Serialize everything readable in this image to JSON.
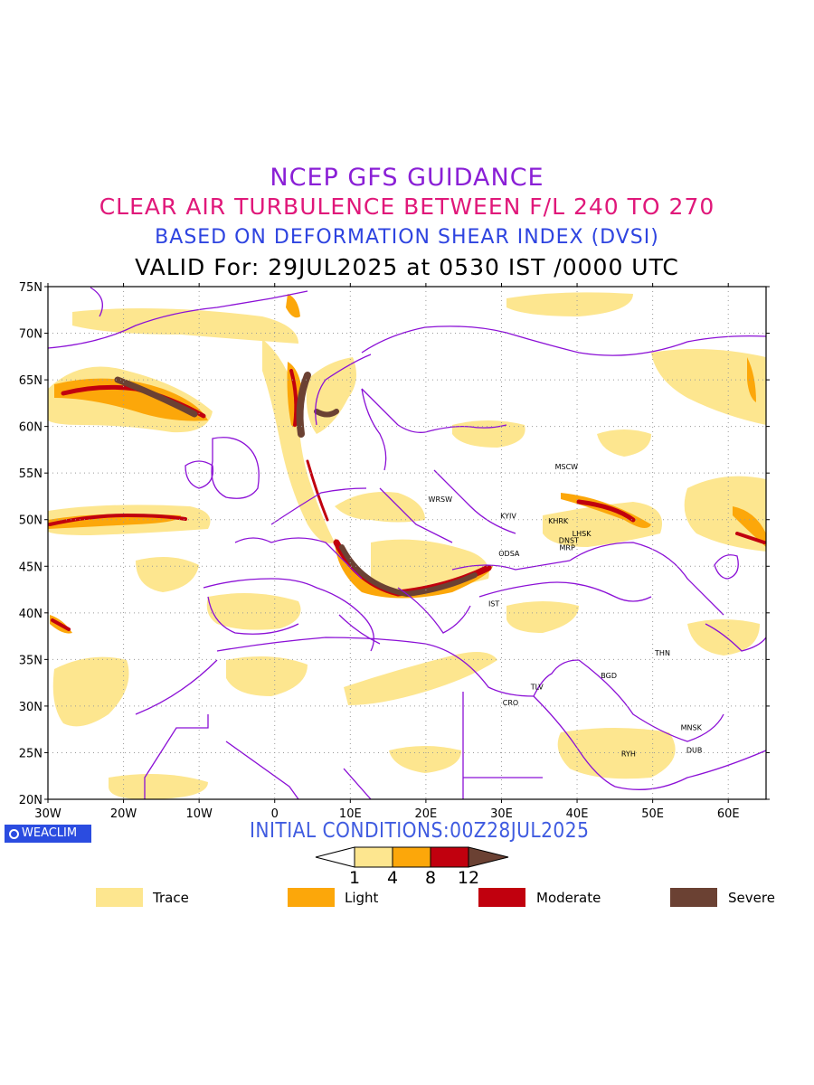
{
  "titles": {
    "line1": "NCEP GFS GUIDANCE",
    "line2": "CLEAR AIR TURBULENCE BETWEEN F/L 240 TO 270",
    "line3": "BASED ON DEFORMATION SHEAR INDEX (DVSI)",
    "line4": "VALID For: 29JUL2025 at 0530 IST /0000 UTC"
  },
  "axes": {
    "lat_labels": [
      "75N",
      "70N",
      "65N",
      "60N",
      "55N",
      "50N",
      "45N",
      "40N",
      "35N",
      "30N",
      "25N",
      "20N"
    ],
    "lon_labels": [
      "30W",
      "20W",
      "10W",
      "0",
      "10E",
      "20E",
      "30E",
      "40E",
      "50E",
      "60E"
    ]
  },
  "cities": [
    {
      "code": "MSCW",
      "lon": 38.6,
      "lat": 55.7
    },
    {
      "code": "WRSW",
      "lon": 21.9,
      "lat": 52.2
    },
    {
      "code": "KYIV",
      "lon": 30.9,
      "lat": 50.4
    },
    {
      "code": "KHRK",
      "lon": 37.5,
      "lat": 49.9
    },
    {
      "code": "LHSK",
      "lon": 40.6,
      "lat": 48.5
    },
    {
      "code": "DNST",
      "lon": 38.9,
      "lat": 47.8
    },
    {
      "code": "MRP",
      "lon": 38.7,
      "lat": 47.0
    },
    {
      "code": "ODSA",
      "lon": 31.0,
      "lat": 46.4
    },
    {
      "code": "IST",
      "lon": 29.0,
      "lat": 41.0
    },
    {
      "code": "THN",
      "lon": 51.3,
      "lat": 35.7
    },
    {
      "code": "BGD",
      "lon": 44.2,
      "lat": 33.3
    },
    {
      "code": "TLV",
      "lon": 34.7,
      "lat": 32.1
    },
    {
      "code": "CRO",
      "lon": 31.2,
      "lat": 30.4
    },
    {
      "code": "MNSK",
      "lon": 55.1,
      "lat": 27.7
    },
    {
      "code": "DUB",
      "lon": 55.5,
      "lat": 25.3
    },
    {
      "code": "RYH",
      "lon": 46.8,
      "lat": 24.9
    }
  ],
  "colorbar": {
    "thresholds": [
      "1",
      "4",
      "8",
      "12"
    ],
    "colors": [
      "#fde68f",
      "#fca70a",
      "#c1000e",
      "#6b4133"
    ]
  },
  "legend": [
    {
      "label": "Trace",
      "color": "#fde68f"
    },
    {
      "label": "Light",
      "color": "#fca70a"
    },
    {
      "label": "Moderate",
      "color": "#c1000e"
    },
    {
      "label": "Severe",
      "color": "#6b4133"
    }
  ],
  "initial_conditions": "INITIAL CONDITIONS:00Z28JUL2025",
  "brand": "WEACLIM"
}
